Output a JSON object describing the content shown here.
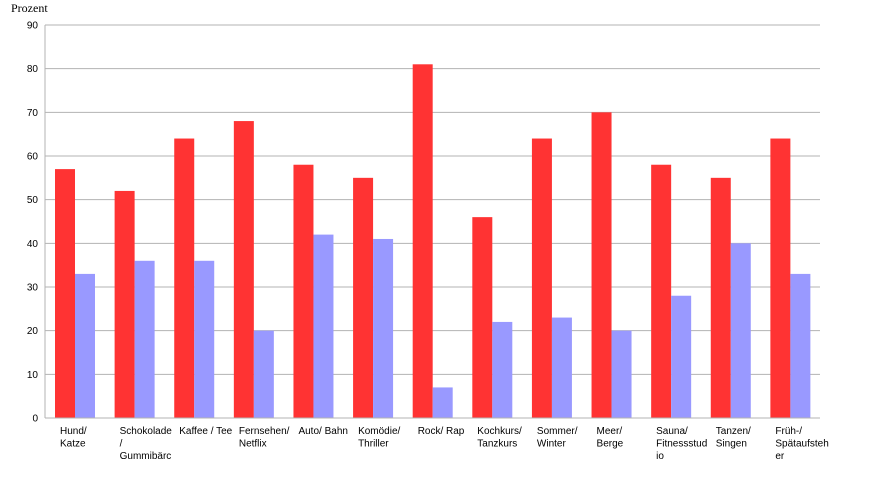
{
  "chart_data": {
    "type": "bar",
    "title": "",
    "xlabel": "",
    "ylabel": "Prozent",
    "ylim": [
      0,
      90
    ],
    "yticks": [
      0,
      10,
      20,
      30,
      40,
      50,
      60,
      70,
      80,
      90
    ],
    "grid": true,
    "legend": "none",
    "categories": [
      [
        "Hund/",
        "Katze"
      ],
      [
        "Schokolade",
        "/",
        "Gummibärc"
      ],
      [
        "Kaffee / Tee"
      ],
      [
        "Fernsehen/",
        "Netflix"
      ],
      [
        "Auto/ Bahn"
      ],
      [
        "Komödie/",
        "Thriller"
      ],
      [
        "Rock/ Rap"
      ],
      [
        "Kochkurs/",
        "Tanzkurs"
      ],
      [
        "Sommer/",
        "Winter"
      ],
      [
        "Meer/",
        "Berge"
      ],
      [
        "Sauna/",
        "Fitnessstud",
        "io"
      ],
      [
        "Tanzen/",
        "Singen"
      ],
      [
        "Früh-/",
        "Spätaufsteh",
        "er"
      ]
    ],
    "series": [
      {
        "color": "#ff3333",
        "values": [
          57,
          52,
          64,
          68,
          58,
          55,
          81,
          46,
          64,
          70,
          58,
          55,
          64
        ]
      },
      {
        "color": "#9999ff",
        "values": [
          33,
          36,
          36,
          20,
          42,
          41,
          7,
          22,
          23,
          20,
          28,
          40,
          33
        ]
      }
    ]
  }
}
